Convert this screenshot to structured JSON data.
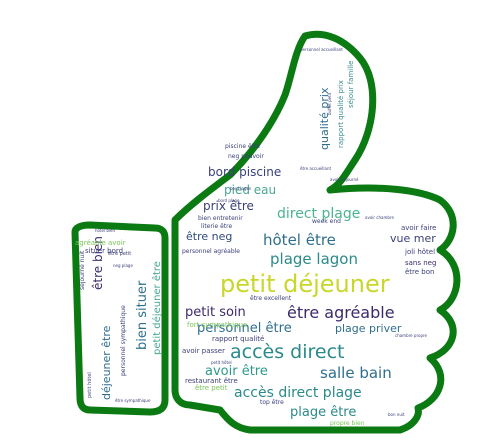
{
  "outline_color": "#0b7a12",
  "words": [
    {
      "text": "petit déjeuner",
      "size": 24,
      "color": "#c9d62a"
    },
    {
      "text": "être agréable",
      "size": 16,
      "color": "#3b2a6b"
    },
    {
      "text": "accès direct",
      "size": 19,
      "color": "#2a8a8c"
    },
    {
      "text": "hôtel être",
      "size": 15,
      "color": "#2f6f8e"
    },
    {
      "text": "plage lagon",
      "size": 15,
      "color": "#2c8a8a"
    },
    {
      "text": "direct plage",
      "size": 14,
      "color": "#4bb38f"
    },
    {
      "text": "salle bain",
      "size": 15,
      "color": "#2e6e8e"
    },
    {
      "text": "accès direct plage",
      "size": 14,
      "color": "#2a8a8c"
    },
    {
      "text": "plage être",
      "size": 13,
      "color": "#2c8a8a"
    },
    {
      "text": "personnel être",
      "size": 13,
      "color": "#2f6f8e"
    },
    {
      "text": "petit soin",
      "size": 13,
      "color": "#3b2a6b"
    },
    {
      "text": "avoir être",
      "size": 13,
      "color": "#2c9a8a"
    },
    {
      "text": "plage priver",
      "size": 11,
      "color": "#2f6f8e"
    },
    {
      "text": "vue mer",
      "size": 11,
      "color": "#3a3f7a"
    },
    {
      "text": "bord piscine",
      "size": 12,
      "color": "#39417a"
    },
    {
      "text": "pied eau",
      "size": 12,
      "color": "#4aa892"
    },
    {
      "text": "prix être",
      "size": 12,
      "color": "#3b3f7a"
    },
    {
      "text": "être neg",
      "size": 11,
      "color": "#2e4a7a"
    },
    {
      "text": "qualité prix",
      "size": 11,
      "color": "#2e6e8e"
    },
    {
      "text": "rapport qualité prix",
      "size": 7,
      "color": "#3c8c8c"
    },
    {
      "text": "séjour famille",
      "size": 7,
      "color": "#3c8c8c"
    },
    {
      "text": "bien situer",
      "size": 13,
      "color": "#2f6f8e"
    },
    {
      "text": "être bien",
      "size": 12,
      "color": "#3b2a6b"
    },
    {
      "text": "déjeuner être",
      "size": 11,
      "color": "#2e6e8e"
    },
    {
      "text": "petit déjeuner être",
      "size": 10,
      "color": "#4aa892"
    },
    {
      "text": "personnel sympathique",
      "size": 6,
      "color": "#3b3f7a"
    },
    {
      "text": "agréable avoir",
      "size": 7,
      "color": "#7ac55a"
    },
    {
      "text": "situer bord",
      "size": 7,
      "color": "#3b3f7a"
    },
    {
      "text": "séjourné nuit",
      "size": 6,
      "color": "#3b3f7a"
    },
    {
      "text": "petit hôtel",
      "size": 5,
      "color": "#3b3f7a"
    },
    {
      "text": "hôtel bien",
      "size": 4,
      "color": "#3b3f7a"
    },
    {
      "text": "être petit",
      "size": 5,
      "color": "#3b3f7a"
    },
    {
      "text": "être sympathique",
      "size": 4,
      "color": "#3b3f7a"
    },
    {
      "text": "neg plage",
      "size": 4,
      "color": "#3b3f7a"
    },
    {
      "text": "joli hôtel",
      "size": 7,
      "color": "#3b3f7a"
    },
    {
      "text": "sans neg",
      "size": 7,
      "color": "#3b2a6b"
    },
    {
      "text": "être bon",
      "size": 7,
      "color": "#3b3f7a"
    },
    {
      "text": "avoir faire",
      "size": 7,
      "color": "#3b3f7a"
    },
    {
      "text": "être excellent",
      "size": 6,
      "color": "#3b3f7a"
    },
    {
      "text": "rapport qualité",
      "size": 7,
      "color": "#3b3f7a"
    },
    {
      "text": "avoir passer",
      "size": 7,
      "color": "#3b3f7a"
    },
    {
      "text": "restaurant être",
      "size": 7,
      "color": "#3b3f7a"
    },
    {
      "text": "être petit",
      "size": 7,
      "color": "#7ac55a"
    },
    {
      "text": "top être",
      "size": 6,
      "color": "#3b3f7a"
    },
    {
      "text": "propre bien",
      "size": 6,
      "color": "#7ac55a"
    },
    {
      "text": "bon nuit",
      "size": 4,
      "color": "#3b3f7a"
    },
    {
      "text": "fort sympathique",
      "size": 7,
      "color": "#7ac55a"
    },
    {
      "text": "personnel agréable",
      "size": 6,
      "color": "#3b3f7a"
    },
    {
      "text": "literie être",
      "size": 6,
      "color": "#3b3f7a"
    },
    {
      "text": "bien entretenir",
      "size": 6,
      "color": "#3b3f7a"
    },
    {
      "text": "week end",
      "size": 6,
      "color": "#3b3f7a"
    },
    {
      "text": "neg pouvoir",
      "size": 6,
      "color": "#3b3f7a"
    },
    {
      "text": "piscine être",
      "size": 6,
      "color": "#3b3f7a"
    },
    {
      "text": "avoir séjourné",
      "size": 4,
      "color": "#3b3f7a"
    },
    {
      "text": "bord lagon",
      "size": 4,
      "color": "#3b3f7a"
    },
    {
      "text": "avoir chambre",
      "size": 4,
      "color": "#3b3f7a"
    },
    {
      "text": "buffet petit",
      "size": 4,
      "color": "#3b3f7a"
    },
    {
      "text": "bord plage",
      "size": 4,
      "color": "#3b3f7a"
    },
    {
      "text": "chambre propre",
      "size": 4,
      "color": "#3b3f7a"
    },
    {
      "text": "personnel accueillant",
      "size": 4,
      "color": "#3b3f7a"
    },
    {
      "text": "être accueillant",
      "size": 4,
      "color": "#3b3f7a"
    },
    {
      "text": "petit hôtel",
      "size": 4,
      "color": "#3b3f7a"
    }
  ]
}
